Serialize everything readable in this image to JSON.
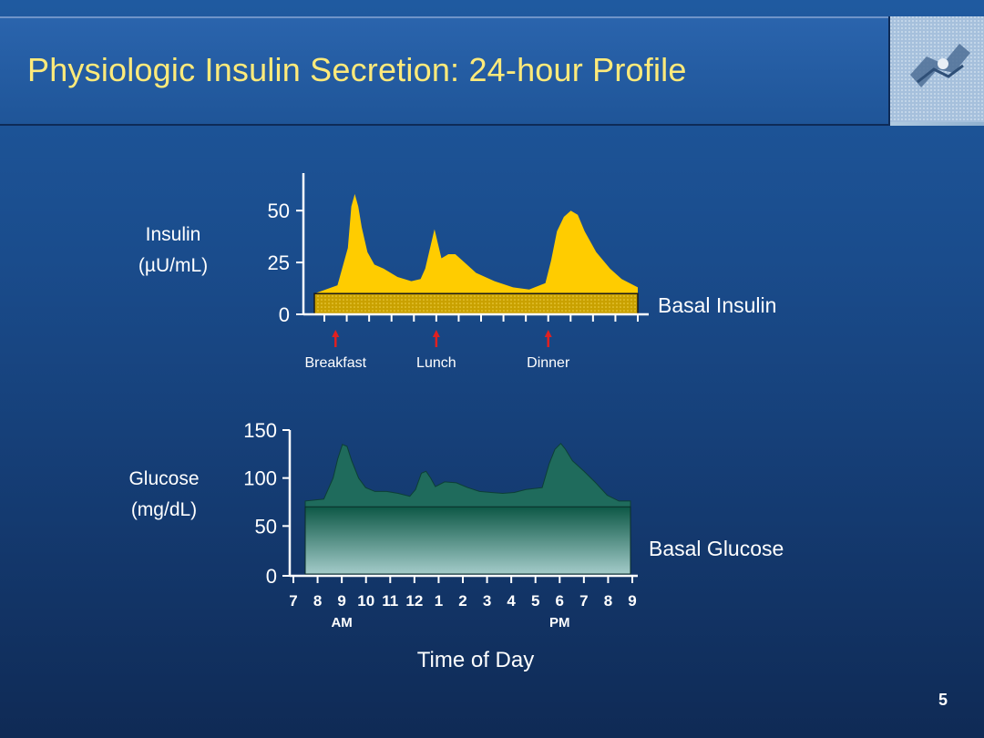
{
  "slide": {
    "title": "Physiologic Insulin Secretion: 24-hour Profile",
    "page_number": "5"
  },
  "chart_data": [
    {
      "type": "area",
      "name": "insulin",
      "ylabel_lines": [
        "Insulin",
        "(µU/mL)"
      ],
      "y_ticks": [
        0,
        25,
        50
      ],
      "ylim": [
        0,
        65
      ],
      "xlim": [
        0,
        14
      ],
      "basal_value": 10,
      "basal_label": "Basal Insulin",
      "series": [
        {
          "name": "Insulin",
          "points": [
            [
              0,
              10
            ],
            [
              1.0,
              14
            ],
            [
              1.45,
              32
            ],
            [
              1.6,
              52
            ],
            [
              1.75,
              58
            ],
            [
              1.9,
              52
            ],
            [
              2.05,
              42
            ],
            [
              2.3,
              30
            ],
            [
              2.6,
              24
            ],
            [
              3.0,
              22
            ],
            [
              3.6,
              18
            ],
            [
              4.2,
              16
            ],
            [
              4.6,
              17
            ],
            [
              4.8,
              22
            ],
            [
              5.05,
              34
            ],
            [
              5.2,
              41
            ],
            [
              5.35,
              34
            ],
            [
              5.5,
              27
            ],
            [
              5.8,
              29
            ],
            [
              6.1,
              29
            ],
            [
              6.4,
              26
            ],
            [
              7.0,
              20
            ],
            [
              7.8,
              16
            ],
            [
              8.6,
              13
            ],
            [
              9.3,
              12
            ],
            [
              10.0,
              15
            ],
            [
              10.25,
              26
            ],
            [
              10.5,
              40
            ],
            [
              10.8,
              47
            ],
            [
              11.1,
              50
            ],
            [
              11.4,
              48
            ],
            [
              11.7,
              40
            ],
            [
              12.2,
              30
            ],
            [
              12.8,
              22
            ],
            [
              13.3,
              17
            ],
            [
              14.0,
              13
            ]
          ]
        }
      ],
      "meal_markers": [
        {
          "label": "Breakfast",
          "x": 0.5
        },
        {
          "label": "Lunch",
          "x": 5.0
        },
        {
          "label": "Dinner",
          "x": 10.0
        }
      ],
      "colors": {
        "curve": "#ffcc00",
        "basal": "#c8a000",
        "marker": "#e02020"
      }
    },
    {
      "type": "area",
      "name": "glucose",
      "ylabel_lines": [
        "Glucose",
        "(mg/dL)"
      ],
      "y_ticks": [
        0,
        50,
        100,
        150
      ],
      "ylim": [
        0,
        150
      ],
      "xlim": [
        0,
        14
      ],
      "basal_value": 70,
      "basal_label": "Basal Glucose",
      "x_ticks": [
        "7",
        "8",
        "9",
        "10",
        "11",
        "12",
        "1",
        "2",
        "3",
        "4",
        "5",
        "6",
        "7",
        "8",
        "9"
      ],
      "x_sublabels": [
        {
          "label": "AM",
          "index": 2
        },
        {
          "label": "PM",
          "index": 11
        }
      ],
      "xlabel": "Time of Day",
      "series": [
        {
          "name": "Glucose",
          "points": [
            [
              0,
              76
            ],
            [
              0.8,
              78
            ],
            [
              1.2,
              100
            ],
            [
              1.4,
              120
            ],
            [
              1.6,
              135
            ],
            [
              1.8,
              133
            ],
            [
              2.0,
              118
            ],
            [
              2.3,
              100
            ],
            [
              2.6,
              90
            ],
            [
              3.0,
              86
            ],
            [
              3.5,
              86
            ],
            [
              4.0,
              84
            ],
            [
              4.5,
              81
            ],
            [
              4.75,
              88
            ],
            [
              5.0,
              105
            ],
            [
              5.2,
              107
            ],
            [
              5.4,
              100
            ],
            [
              5.6,
              91
            ],
            [
              6.0,
              96
            ],
            [
              6.5,
              95
            ],
            [
              7.0,
              90
            ],
            [
              7.5,
              86
            ],
            [
              8.0,
              85
            ],
            [
              8.5,
              84
            ],
            [
              9.0,
              85
            ],
            [
              9.5,
              88
            ],
            [
              10.2,
              90
            ],
            [
              10.5,
              115
            ],
            [
              10.75,
              130
            ],
            [
              11.0,
              136
            ],
            [
              11.2,
              130
            ],
            [
              11.5,
              118
            ],
            [
              12.0,
              107
            ],
            [
              12.5,
              95
            ],
            [
              13.0,
              82
            ],
            [
              13.5,
              76
            ],
            [
              14.0,
              76
            ]
          ]
        }
      ],
      "colors": {
        "curve": "#1f6b5c",
        "basal_top": "#0f5c4a",
        "basal_bottom": "#9ac8c6"
      }
    }
  ]
}
